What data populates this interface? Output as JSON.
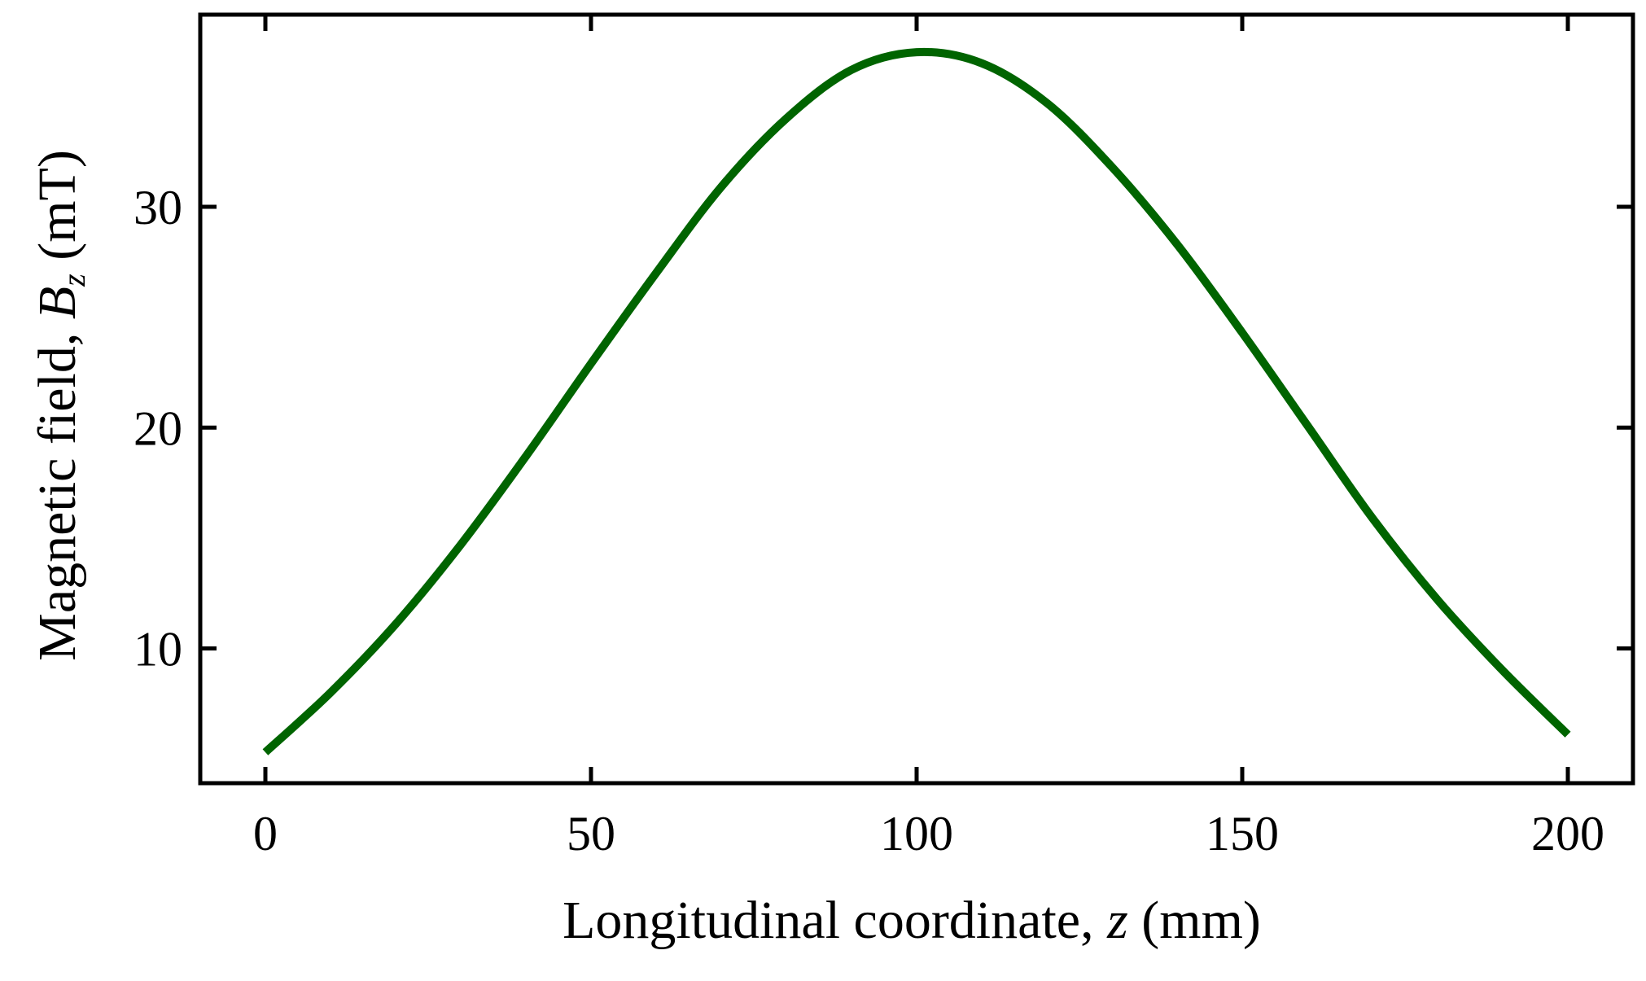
{
  "chart_data": {
    "type": "line",
    "xlabel": {
      "prefix": "Longitudinal coordinate, ",
      "var": "z",
      "suffix": " (mm)"
    },
    "ylabel": {
      "prefix": "Magnetic field, ",
      "var": "B",
      "sub": "z",
      "suffix": " (mT)"
    },
    "xlim": [
      -10,
      210
    ],
    "ylim": [
      3.9,
      38.7
    ],
    "xticks": [
      0,
      50,
      100,
      150,
      200
    ],
    "xtick_labels": [
      "0",
      "50",
      "100",
      "150",
      "200"
    ],
    "yticks": [
      10,
      20,
      30
    ],
    "ytick_labels": [
      "10",
      "20",
      "30"
    ],
    "grid": false,
    "series": [
      {
        "color": "#006400",
        "x": [
          0,
          10,
          20,
          30,
          40,
          50,
          60,
          70,
          80,
          90,
          100,
          110,
          120,
          130,
          140,
          150,
          160,
          170,
          180,
          190,
          200
        ],
        "y": [
          5.3,
          8.0,
          11.1,
          14.7,
          18.7,
          22.9,
          27.0,
          30.9,
          34.0,
          36.2,
          37.0,
          36.5,
          34.7,
          31.8,
          28.3,
          24.3,
          20.1,
          15.9,
          12.2,
          9.0,
          6.1
        ]
      }
    ]
  }
}
